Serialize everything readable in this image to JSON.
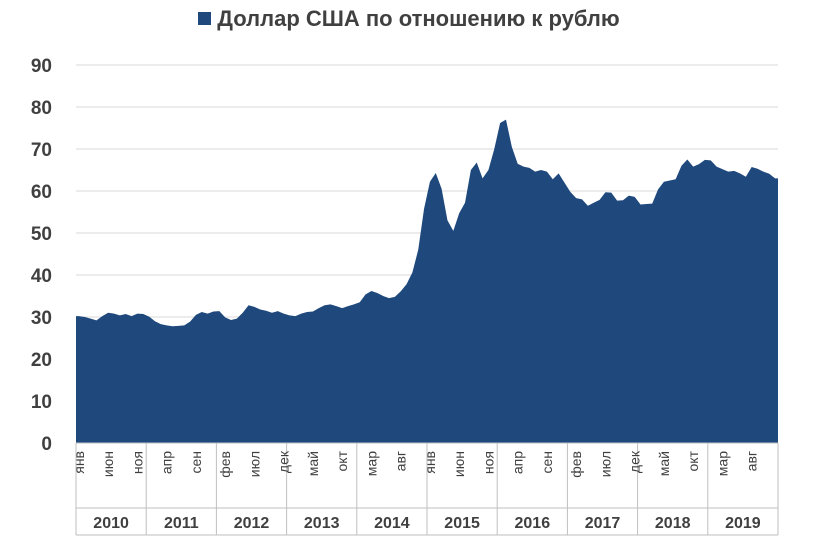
{
  "chart_data": {
    "type": "area",
    "ylim": [
      0,
      90
    ],
    "yticks": [
      0,
      10,
      20,
      30,
      40,
      50,
      60,
      70,
      80,
      90
    ],
    "grid": true,
    "legend_position": "top",
    "colors": {
      "series": "#1F497D",
      "grid": "#D9D9D9",
      "text": "#404040"
    },
    "month_labels": [
      "янв",
      "июн",
      "ноя",
      "апр",
      "сен",
      "фев",
      "июл",
      "дек",
      "май",
      "окт",
      "мар",
      "авг",
      "янв",
      "июн",
      "ноя",
      "апр",
      "сен",
      "фев",
      "июл",
      "дек",
      "май",
      "окт",
      "мар",
      "авг"
    ],
    "month_label_start_index": 0,
    "month_label_step": 5,
    "years": [
      "2010",
      "2011",
      "2012",
      "2013",
      "2014",
      "2015",
      "2016",
      "2017",
      "2018",
      "2019"
    ],
    "series": [
      {
        "name": "Доллар США по отношению к рублю",
        "x_start": "2010-01",
        "values": [
          30.2,
          30.0,
          29.6,
          29.2,
          30.2,
          31.0,
          30.8,
          30.4,
          30.7,
          30.2,
          30.8,
          30.7,
          30.1,
          29.0,
          28.3,
          28.0,
          27.8,
          27.9,
          28.0,
          28.9,
          30.5,
          31.2,
          30.8,
          31.3,
          31.4,
          29.9,
          29.3,
          29.6,
          31.0,
          32.8,
          32.4,
          31.8,
          31.5,
          31.0,
          31.4,
          30.8,
          30.4,
          30.2,
          30.8,
          31.2,
          31.3,
          32.1,
          32.8,
          33.0,
          32.6,
          32.1,
          32.6,
          33.0,
          33.5,
          35.4,
          36.2,
          35.7,
          35.0,
          34.5,
          34.8,
          36.1,
          37.8,
          40.6,
          46.0,
          55.8,
          62.2,
          64.3,
          60.5,
          53.0,
          50.5,
          54.7,
          57.2,
          65.0,
          66.8,
          63.0,
          65.0,
          70.0,
          76.2,
          77.0,
          70.5,
          66.5,
          65.8,
          65.5,
          64.6,
          65.0,
          64.6,
          62.8,
          64.2,
          62.0,
          59.8,
          58.3,
          58.0,
          56.5,
          57.2,
          57.9,
          59.7,
          59.6,
          57.7,
          57.8,
          58.9,
          58.6,
          56.8,
          56.9,
          57.0,
          60.4,
          62.2,
          62.5,
          62.8,
          66.0,
          67.5,
          65.8,
          66.4,
          67.4,
          67.3,
          65.8,
          65.2,
          64.6,
          64.8,
          64.2,
          63.4,
          65.7,
          65.3,
          64.6,
          64.1,
          63.0
        ]
      }
    ]
  }
}
